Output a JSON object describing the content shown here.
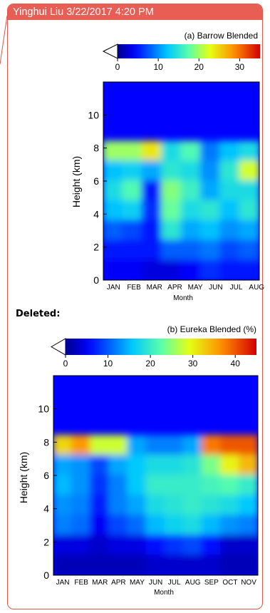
{
  "comment": {
    "author": "Yinghui Liu",
    "timestamp": "3/22/2017 4:20 PM",
    "header_text": "Yinghui Liu 3/22/2017 4:20 PM",
    "deleted_label": "Deleted:",
    "accent_color": "#e85e55"
  },
  "chart_data": [
    {
      "type": "heatmap",
      "title": "(a) Barrow Blended",
      "colorbar_ticks": [
        "0",
        "10",
        "20",
        "30"
      ],
      "colorbar_range": [
        0,
        35
      ],
      "xlabel": "Month",
      "ylabel": "Height (km)",
      "categories": [
        "JAN",
        "FEB",
        "MAR",
        "APR",
        "MAY",
        "JUN",
        "JUL",
        "AUG"
      ],
      "y_ticks": [
        "0",
        "2",
        "4",
        "6",
        "8",
        "10"
      ],
      "ylim": [
        0,
        12
      ],
      "colormap": "jet",
      "values": [
        [
          20,
          20,
          24,
          14,
          17,
          9,
          12,
          14
        ],
        [
          12,
          13,
          11,
          15,
          14,
          10,
          15,
          22
        ],
        [
          14,
          17,
          5,
          19,
          16,
          11,
          14,
          14
        ],
        [
          12,
          13,
          6,
          18,
          14,
          15,
          12,
          15
        ],
        [
          8,
          7,
          5,
          15,
          11,
          12,
          10,
          11
        ],
        [
          5,
          5,
          5,
          8,
          8,
          9,
          7,
          8
        ],
        [
          4,
          4,
          3,
          3,
          4,
          6,
          5,
          5
        ]
      ]
    },
    {
      "type": "heatmap",
      "title": "(b) Eureka Blended (%)",
      "colorbar_ticks": [
        "0",
        "10",
        "20",
        "30",
        "40"
      ],
      "colorbar_range": [
        0,
        45
      ],
      "xlabel": "Month",
      "ylabel": "Height (km)",
      "categories": [
        "JAN",
        "FEB",
        "MAR",
        "APR",
        "MAY",
        "JUN",
        "JUL",
        "AUG",
        "SEP",
        "OCT",
        "NOV"
      ],
      "y_ticks": [
        "0",
        "2",
        "4",
        "6",
        "8",
        "10"
      ],
      "ylim": [
        0,
        12
      ],
      "colormap": "jet",
      "values": [
        [
          32,
          36,
          28,
          28,
          14,
          12,
          12,
          14,
          38,
          40,
          40
        ],
        [
          14,
          13,
          9,
          14,
          16,
          18,
          18,
          19,
          24,
          30,
          34
        ],
        [
          15,
          13,
          8,
          12,
          16,
          20,
          20,
          20,
          21,
          22,
          20
        ],
        [
          13,
          12,
          7,
          12,
          14,
          18,
          19,
          20,
          19,
          18,
          16
        ],
        [
          12,
          11,
          5,
          9,
          11,
          15,
          17,
          18,
          15,
          13,
          12
        ],
        [
          4,
          4,
          3,
          4,
          4,
          6,
          8,
          9,
          6,
          3,
          3
        ],
        [
          2,
          2,
          2,
          2,
          2,
          3,
          3,
          3,
          3,
          2,
          2
        ]
      ]
    }
  ]
}
